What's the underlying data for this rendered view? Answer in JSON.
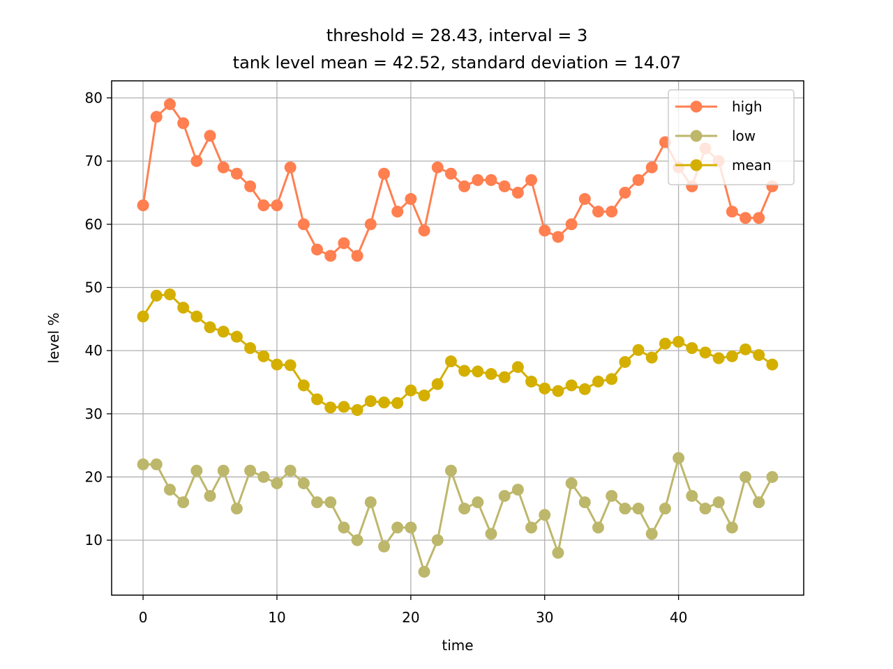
{
  "chart_data": {
    "type": "line",
    "title_line1": "threshold = 28.43, interval = 3",
    "title_line2": "tank level mean = 42.52, standard deviation = 14.07",
    "xlabel": "time",
    "ylabel": "level %",
    "xlim": [
      -2.35,
      49.35
    ],
    "ylim": [
      1.3,
      82.7
    ],
    "xticks": [
      0,
      10,
      20,
      30,
      40
    ],
    "yticks": [
      10,
      20,
      30,
      40,
      50,
      60,
      70,
      80
    ],
    "grid": true,
    "legend_position": "upper right",
    "x": [
      0,
      1,
      2,
      3,
      4,
      5,
      6,
      7,
      8,
      9,
      10,
      11,
      12,
      13,
      14,
      15,
      16,
      17,
      18,
      19,
      20,
      21,
      22,
      23,
      24,
      25,
      26,
      27,
      28,
      29,
      30,
      31,
      32,
      33,
      34,
      35,
      36,
      37,
      38,
      39,
      40,
      41,
      42,
      43,
      44,
      45,
      46,
      47
    ],
    "series": [
      {
        "name": "high",
        "color": "#ff7f50",
        "values": [
          63,
          77,
          79,
          76,
          70,
          74,
          69,
          68,
          66,
          63,
          63,
          69,
          60,
          56,
          55,
          57,
          55,
          60,
          68,
          62,
          64,
          59,
          69,
          68,
          66,
          67,
          67,
          66,
          65,
          67,
          59,
          58,
          60,
          64,
          62,
          62,
          65,
          67,
          69,
          73,
          69,
          66,
          72,
          70,
          62,
          61,
          61,
          66
        ]
      },
      {
        "name": "low",
        "color": "#bdb76b",
        "values": [
          22,
          22,
          18,
          16,
          21,
          17,
          21,
          15,
          21,
          20,
          19,
          21,
          19,
          16,
          16,
          12,
          10,
          16,
          9,
          12,
          12,
          5,
          10,
          21,
          15,
          16,
          11,
          17,
          18,
          12,
          14,
          8,
          19,
          16,
          12,
          17,
          15,
          15,
          11,
          15,
          23,
          17,
          15,
          16,
          12,
          20,
          16,
          20
        ]
      },
      {
        "name": "mean",
        "color": "#d4af00",
        "values": [
          45.4,
          48.7,
          48.9,
          46.8,
          45.4,
          43.7,
          43.0,
          42.2,
          40.4,
          39.1,
          37.8,
          37.7,
          34.5,
          32.3,
          31.0,
          31.1,
          30.6,
          32.0,
          31.8,
          31.7,
          33.7,
          32.9,
          34.7,
          38.3,
          36.8,
          36.7,
          36.3,
          35.8,
          37.4,
          35.1,
          34.0,
          33.6,
          34.5,
          33.9,
          35.1,
          35.5,
          38.2,
          40.1,
          38.9,
          41.1,
          41.4,
          40.4,
          39.7,
          38.8,
          39.1,
          40.2,
          39.3,
          37.8
        ]
      }
    ]
  }
}
